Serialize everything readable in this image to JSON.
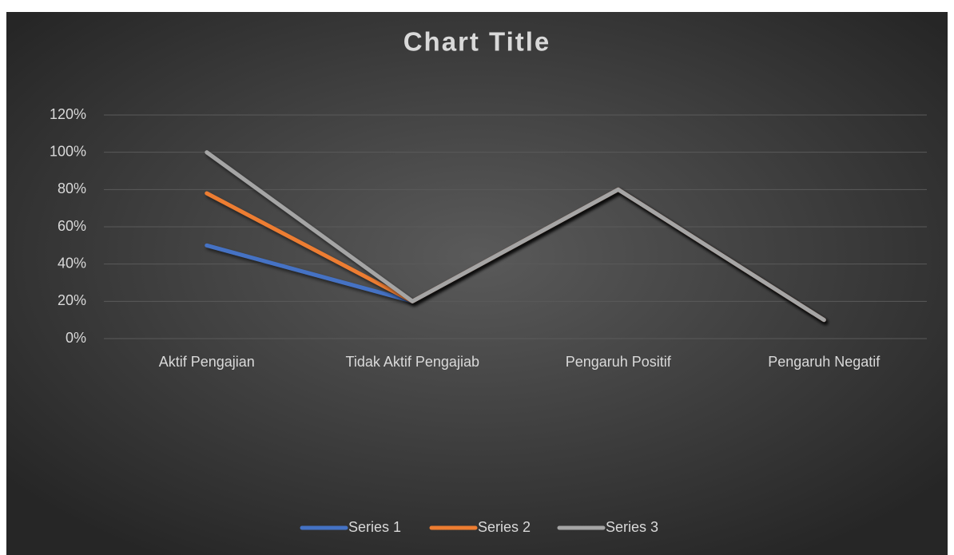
{
  "chart_data": {
    "type": "line",
    "title": "Chart Title",
    "categories": [
      "Aktif Pengajian",
      "Tidak Aktif Pengajiab",
      "Pengaruh Positif",
      "Pengaruh Negatif"
    ],
    "series": [
      {
        "name": "Series 1",
        "color": "#4472c4",
        "values": [
          50,
          20,
          80,
          10
        ]
      },
      {
        "name": "Series 2",
        "color": "#ed7d31",
        "values": [
          78,
          20,
          80,
          10
        ]
      },
      {
        "name": "Series 3",
        "color": "#a5a5a5",
        "values": [
          100,
          20,
          80,
          10
        ]
      }
    ],
    "ylim": [
      0,
      120
    ],
    "yticks": [
      {
        "value": 0,
        "label": "0%"
      },
      {
        "value": 20,
        "label": "20%"
      },
      {
        "value": 40,
        "label": "40%"
      },
      {
        "value": 60,
        "label": "60%"
      },
      {
        "value": 80,
        "label": "80%"
      },
      {
        "value": 100,
        "label": "100%"
      },
      {
        "value": 120,
        "label": "120%"
      }
    ],
    "grid": true,
    "legend": "bottom"
  }
}
